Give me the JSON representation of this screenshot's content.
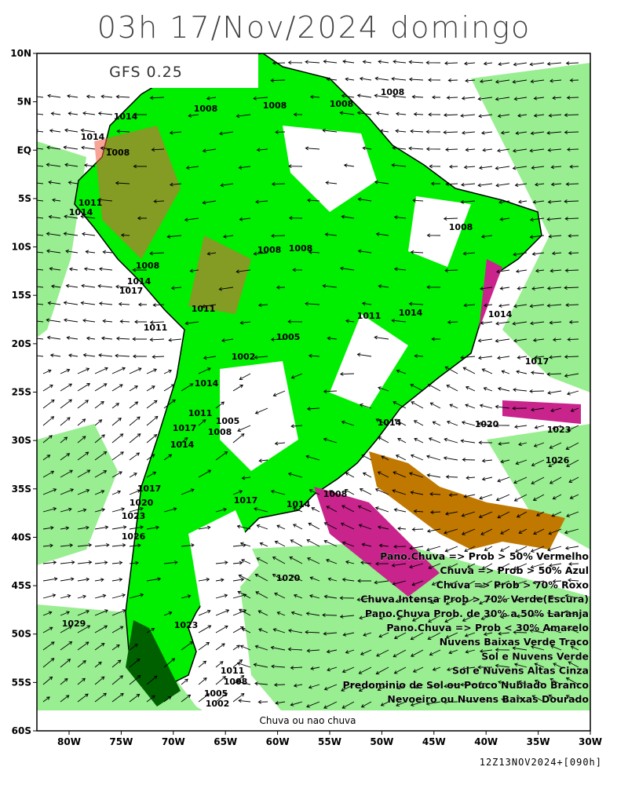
{
  "header": {
    "title": "03h 17/Nov/2024 domingo",
    "model": "GFS 0.25"
  },
  "lat_labels": [
    "10N",
    "5N",
    "EQ",
    "5S",
    "10S",
    "15S",
    "20S",
    "25S",
    "30S",
    "35S",
    "40S",
    "45S",
    "50S",
    "55S",
    "60S"
  ],
  "lon_labels": [
    "80W",
    "75W",
    "70W",
    "65W",
    "60W",
    "55W",
    "50W",
    "45W",
    "40W",
    "35W",
    "30W"
  ],
  "isobar_labels": [
    "1008",
    "1008",
    "1008",
    "1008",
    "1014",
    "1014",
    "1008",
    "1011",
    "1014",
    "1008",
    "1008",
    "1008",
    "1008",
    "1014",
    "1017",
    "1011",
    "1011",
    "1011",
    "1014",
    "1014",
    "1017",
    "1005",
    "1002",
    "1014",
    "1011",
    "1005",
    "1008",
    "1017",
    "1014",
    "1014",
    "1020",
    "1023",
    "1026",
    "1017",
    "1020",
    "1023",
    "1026",
    "1014",
    "1008",
    "1017",
    "1020",
    "1029",
    "1023",
    "1011",
    "1008",
    "1005",
    "1002"
  ],
  "legend": [
    "Pano.Chuva => Prob > 50% Vermelho",
    "Chuva => Prob > 50% Azul",
    "Chuva => Prob > 70% Roxo",
    "Chuva Intensa Prob > 70% Verde(Escura)",
    "Pano.Chuva Prob. de 30% a 50% Laranja",
    "Pano.Chuva => Prob < 30% Amarelo",
    "Nuvens Baixas Verde Traco",
    "Sol e Nuvens Verde",
    "Sol e Nuvens Altas Cinza",
    "Predominio de Sol ou Pouco Nublado Branco",
    "Nevoeiro ou Nuvens Baixas Dourado"
  ],
  "bottom_label": "Chuva ou nao chuva",
  "footer": "12Z13NOV2024+[090h]"
}
